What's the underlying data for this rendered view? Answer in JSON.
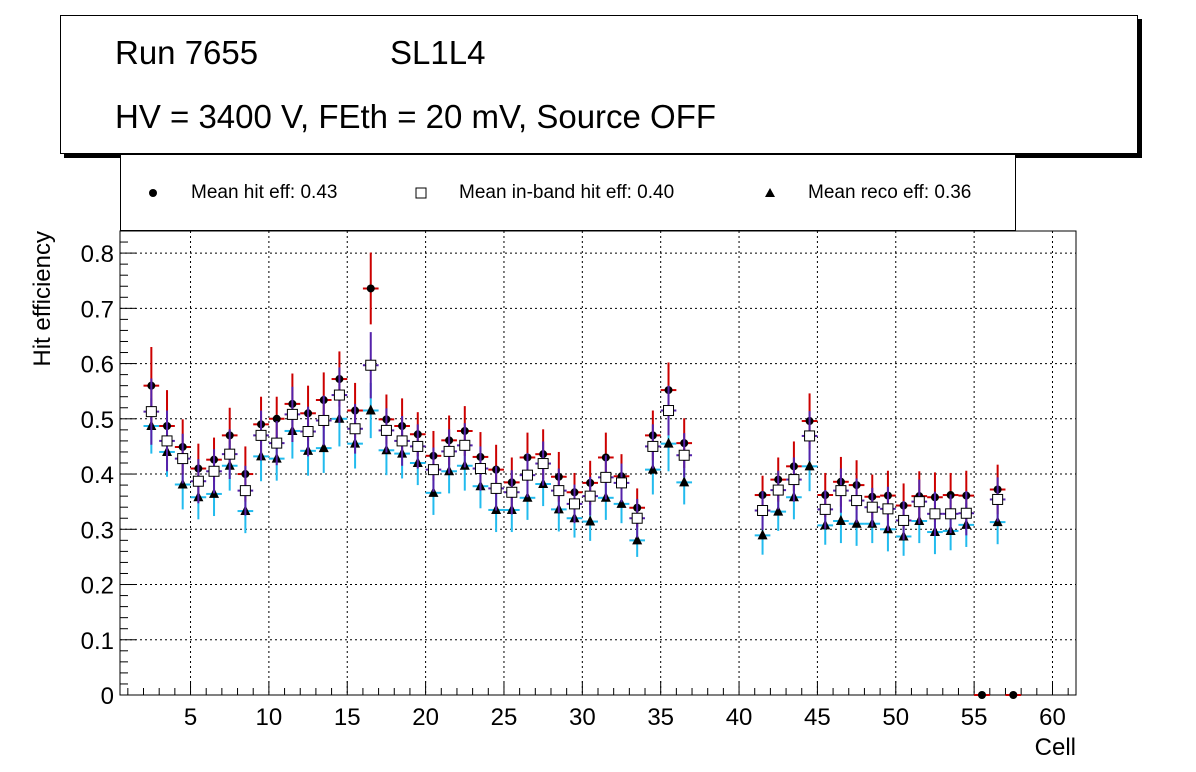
{
  "header": {
    "run": "Run 7655",
    "layer": "SL1L4",
    "conditions": "HV = 3400 V, FEth = 20 mV, Source OFF"
  },
  "legend": {
    "hit": "Mean hit  eff: 0.43",
    "inband": "Mean in-band hit eff: 0.40",
    "reco": "Mean reco eff: 0.36"
  },
  "colors": {
    "hit_error": "#cc0000",
    "hit_marker": "#000000",
    "inband_error": "#5522aa",
    "inband_fill": "#ffffff",
    "reco_error": "#22bbee",
    "reco_marker": "#000000",
    "grid": "#000000"
  },
  "chart_data": {
    "type": "scatter",
    "xlabel": "Cell",
    "ylabel": "Hit efficiency",
    "xlim": [
      0.5,
      61.5
    ],
    "ylim": [
      0,
      0.84
    ],
    "x_ticks": [
      5,
      10,
      15,
      20,
      25,
      30,
      35,
      40,
      45,
      50,
      55,
      60
    ],
    "y_ticks": [
      0,
      0.1,
      0.2,
      0.3,
      0.4,
      0.5,
      0.6,
      0.7,
      0.8
    ],
    "grid": true,
    "series": [
      {
        "name": "Mean hit  eff: 0.43",
        "marker": "circle",
        "x": [
          2.5,
          3.5,
          4.5,
          5.5,
          6.5,
          7.5,
          8.5,
          9.5,
          10.5,
          11.5,
          12.5,
          13.5,
          14.5,
          15.5,
          16.5,
          17.5,
          18.5,
          19.5,
          20.5,
          21.5,
          22.5,
          23.5,
          24.5,
          25.5,
          26.5,
          27.5,
          28.5,
          29.5,
          30.5,
          31.5,
          32.5,
          33.5,
          34.5,
          35.5,
          36.5,
          41.5,
          42.5,
          43.5,
          44.5,
          45.5,
          46.5,
          47.5,
          48.5,
          49.5,
          50.5,
          51.5,
          52.5,
          53.5,
          54.5,
          55.5,
          56.5,
          57.5
        ],
        "values": [
          0.56,
          0.487,
          0.449,
          0.41,
          0.426,
          0.47,
          0.4,
          0.49,
          0.5,
          0.527,
          0.51,
          0.534,
          0.572,
          0.515,
          0.736,
          0.499,
          0.487,
          0.472,
          0.433,
          0.461,
          0.478,
          0.431,
          0.408,
          0.385,
          0.43,
          0.436,
          0.395,
          0.367,
          0.384,
          0.43,
          0.396,
          0.339,
          0.47,
          0.552,
          0.456,
          0.362,
          0.39,
          0.414,
          0.496,
          0.362,
          0.386,
          0.38,
          0.359,
          0.361,
          0.343,
          0.36,
          0.358,
          0.362,
          0.361,
          0.0,
          0.372,
          0.0
        ],
        "err": [
          0.07,
          0.065,
          0.05,
          0.045,
          0.04,
          0.05,
          0.05,
          0.05,
          0.04,
          0.055,
          0.05,
          0.05,
          0.05,
          0.05,
          0.065,
          0.045,
          0.05,
          0.04,
          0.045,
          0.045,
          0.045,
          0.045,
          0.045,
          0.045,
          0.045,
          0.045,
          0.045,
          0.035,
          0.04,
          0.045,
          0.04,
          0.035,
          0.045,
          0.05,
          0.045,
          0.035,
          0.04,
          0.045,
          0.05,
          0.04,
          0.045,
          0.045,
          0.04,
          0.045,
          0.04,
          0.045,
          0.045,
          0.04,
          0.045,
          0.0,
          0.045,
          0.0
        ]
      },
      {
        "name": "Mean in-band hit eff: 0.40",
        "marker": "open-square",
        "x": [
          2.5,
          3.5,
          4.5,
          5.5,
          6.5,
          7.5,
          8.5,
          9.5,
          10.5,
          11.5,
          12.5,
          13.5,
          14.5,
          15.5,
          16.5,
          17.5,
          18.5,
          19.5,
          20.5,
          21.5,
          22.5,
          23.5,
          24.5,
          25.5,
          26.5,
          27.5,
          28.5,
          29.5,
          30.5,
          31.5,
          32.5,
          33.5,
          34.5,
          35.5,
          36.5,
          41.5,
          42.5,
          43.5,
          44.5,
          45.5,
          46.5,
          47.5,
          48.5,
          49.5,
          50.5,
          51.5,
          52.5,
          53.5,
          54.5,
          56.5
        ],
        "values": [
          0.513,
          0.46,
          0.428,
          0.387,
          0.405,
          0.436,
          0.37,
          0.47,
          0.456,
          0.508,
          0.477,
          0.497,
          0.543,
          0.482,
          0.597,
          0.479,
          0.46,
          0.45,
          0.408,
          0.441,
          0.452,
          0.41,
          0.374,
          0.367,
          0.398,
          0.419,
          0.37,
          0.346,
          0.36,
          0.394,
          0.384,
          0.32,
          0.45,
          0.515,
          0.434,
          0.334,
          0.371,
          0.39,
          0.469,
          0.336,
          0.37,
          0.352,
          0.34,
          0.337,
          0.316,
          0.35,
          0.328,
          0.328,
          0.329,
          0.354
        ],
        "err": [
          0.06,
          0.055,
          0.045,
          0.04,
          0.04,
          0.045,
          0.045,
          0.045,
          0.04,
          0.05,
          0.045,
          0.045,
          0.05,
          0.045,
          0.06,
          0.04,
          0.045,
          0.04,
          0.04,
          0.04,
          0.04,
          0.04,
          0.04,
          0.04,
          0.04,
          0.04,
          0.04,
          0.035,
          0.035,
          0.04,
          0.035,
          0.035,
          0.04,
          0.045,
          0.04,
          0.035,
          0.035,
          0.04,
          0.045,
          0.035,
          0.04,
          0.04,
          0.035,
          0.04,
          0.035,
          0.04,
          0.04,
          0.035,
          0.04,
          0.04
        ]
      },
      {
        "name": "Mean reco eff: 0.36",
        "marker": "triangle",
        "x": [
          2.5,
          3.5,
          4.5,
          5.5,
          6.5,
          7.5,
          8.5,
          9.5,
          10.5,
          11.5,
          12.5,
          13.5,
          14.5,
          15.5,
          16.5,
          17.5,
          18.5,
          19.5,
          20.5,
          21.5,
          22.5,
          23.5,
          24.5,
          25.5,
          26.5,
          27.5,
          28.5,
          29.5,
          30.5,
          31.5,
          32.5,
          33.5,
          34.5,
          35.5,
          36.5,
          41.5,
          42.5,
          43.5,
          44.5,
          45.5,
          46.5,
          47.5,
          48.5,
          49.5,
          50.5,
          51.5,
          52.5,
          53.5,
          54.5,
          56.5
        ],
        "values": [
          0.487,
          0.44,
          0.381,
          0.358,
          0.364,
          0.415,
          0.333,
          0.432,
          0.428,
          0.478,
          0.442,
          0.447,
          0.5,
          0.455,
          0.515,
          0.443,
          0.437,
          0.42,
          0.366,
          0.405,
          0.415,
          0.378,
          0.335,
          0.335,
          0.357,
          0.382,
          0.336,
          0.32,
          0.314,
          0.357,
          0.346,
          0.28,
          0.408,
          0.455,
          0.385,
          0.289,
          0.332,
          0.358,
          0.414,
          0.307,
          0.315,
          0.31,
          0.31,
          0.3,
          0.287,
          0.315,
          0.295,
          0.297,
          0.308,
          0.313
        ],
        "err": [
          0.05,
          0.045,
          0.045,
          0.04,
          0.04,
          0.045,
          0.04,
          0.045,
          0.04,
          0.05,
          0.045,
          0.045,
          0.05,
          0.045,
          0.05,
          0.045,
          0.045,
          0.04,
          0.04,
          0.04,
          0.045,
          0.04,
          0.04,
          0.04,
          0.04,
          0.04,
          0.04,
          0.035,
          0.035,
          0.04,
          0.035,
          0.03,
          0.045,
          0.05,
          0.04,
          0.035,
          0.035,
          0.04,
          0.045,
          0.035,
          0.04,
          0.04,
          0.035,
          0.04,
          0.035,
          0.04,
          0.04,
          0.035,
          0.04,
          0.04
        ]
      }
    ]
  }
}
